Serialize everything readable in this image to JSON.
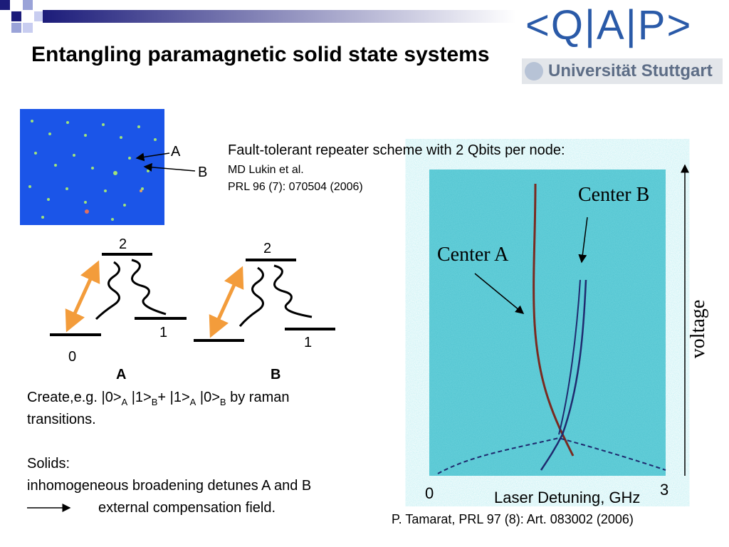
{
  "header": {
    "title": "Entangling paramagnetic solid state systems",
    "logo_text": "<Q|A|P>",
    "logo_subtitle": "Universität Stuttgart"
  },
  "crystal_image": {
    "labels": [
      "A",
      "B"
    ]
  },
  "reference": {
    "heading": "Fault-tolerant repeater scheme with 2 Qbits per node:",
    "lines": [
      "MD Lukin et al.",
      "PRL 96 (7):  070504 (2006)"
    ]
  },
  "level_diagrams": [
    {
      "name": "A",
      "levels": [
        "2",
        "1",
        "0"
      ]
    },
    {
      "name": "B",
      "levels": [
        "2",
        "1"
      ]
    }
  ],
  "body": {
    "create_parts": [
      "Create,e.g.  |0>",
      "A",
      " |1>",
      "B",
      "+ |1>",
      "A",
      " |0>",
      "B",
      " by raman"
    ],
    "create_line2": "transitions.",
    "solids": "Solids:",
    "broadening": "inhomogeneous broadening detunes A and B",
    "compensation": "external compensation field."
  },
  "spectrum": {
    "center_b": "Center B",
    "center_a": "Center A",
    "y_label": "voltage",
    "x_start": "0",
    "x_end": "3",
    "x_label": "Laser Detuning, GHz",
    "citation": "P. Tamarat, PRL 97 (8): Art. 083002  (2006)"
  }
}
